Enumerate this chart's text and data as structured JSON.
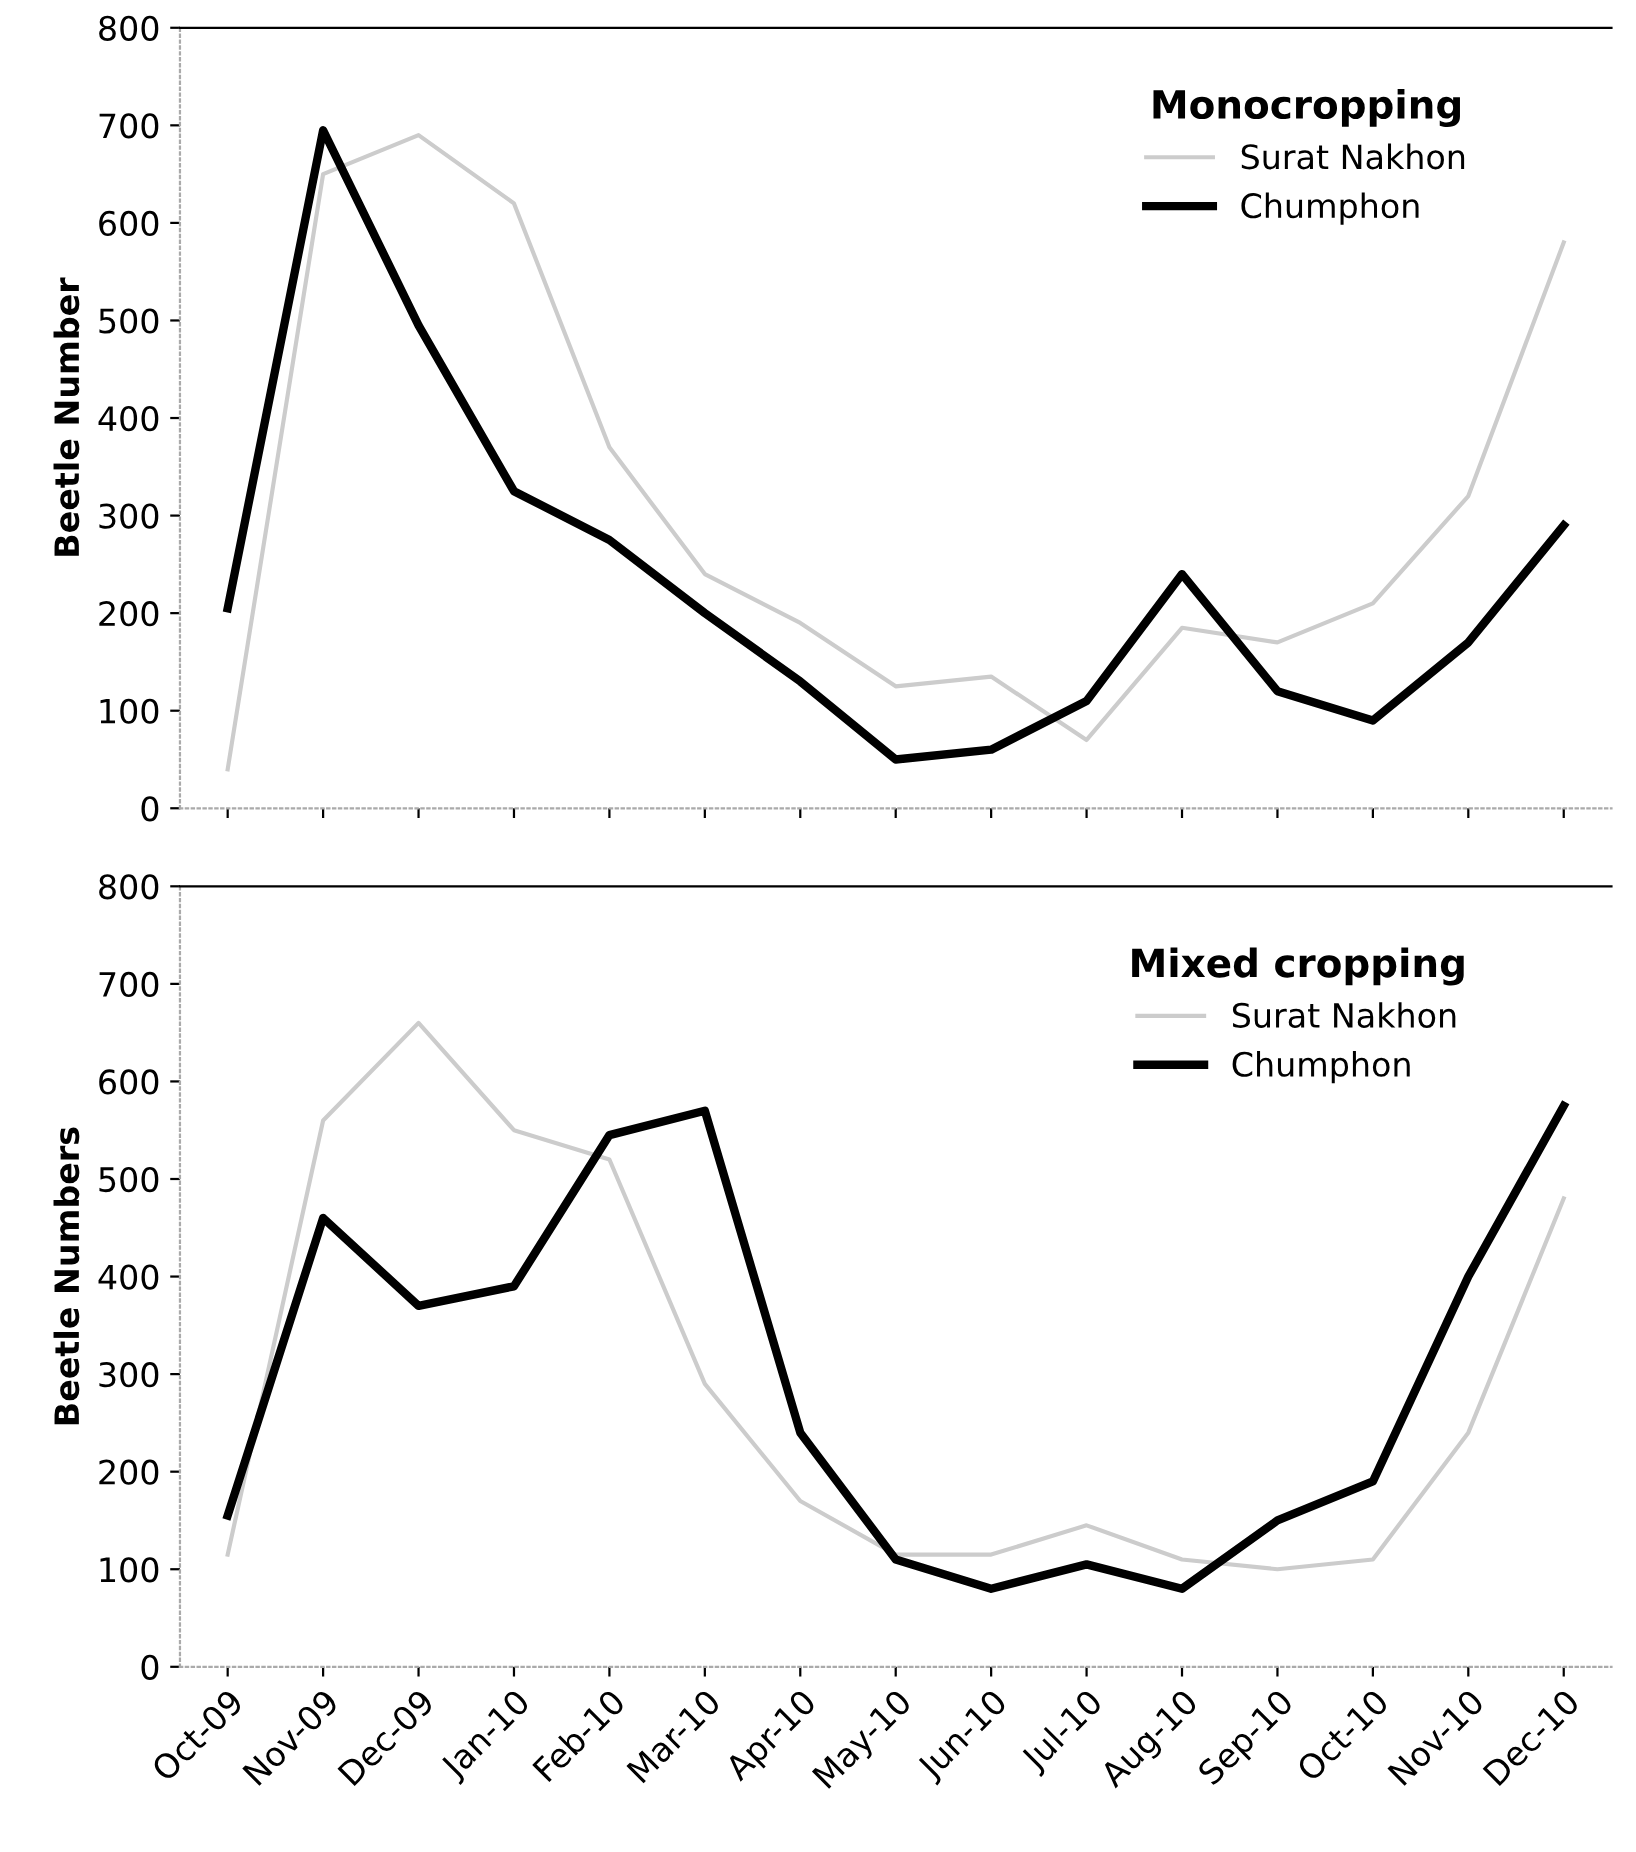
{
  "chart_data": [
    {
      "type": "line",
      "ylabel": "Beetle Number",
      "legend_title": "Monocropping",
      "legend": "top right",
      "tick_labels": "y",
      "categories": [
        null,
        null,
        null,
        null,
        null,
        null,
        null,
        null,
        null,
        null,
        null,
        null,
        null,
        null,
        null
      ],
      "ylim": [
        0,
        800
      ],
      "yticks": [
        0,
        100,
        200,
        300,
        400,
        500,
        600,
        700,
        800
      ],
      "series": [
        {
          "name": "Surat Nakhon",
          "color": "#cccccc",
          "values": [
            40,
            650,
            690,
            620,
            370,
            240,
            190,
            125,
            135,
            70,
            185,
            170,
            210,
            320,
            580
          ]
        },
        {
          "name": "Chumphon",
          "color": "#000000",
          "values": [
            205,
            695,
            495,
            325,
            275,
            200,
            130,
            50,
            60,
            110,
            240,
            120,
            90,
            170,
            290
          ]
        }
      ]
    },
    {
      "type": "line",
      "ylabel": "Beetle Numbers",
      "legend_title": "Mixed cropping",
      "legend": "top right",
      "categories": [
        "Oct-09",
        "Nov-09",
        "Dec-09",
        "Jan-10",
        "Feb-10",
        "Mar-10",
        "Apr-10",
        "May-10",
        "Jun-10",
        "Jul-10",
        "Aug-10",
        "Sep-10",
        "Oct-10",
        "Nov-10",
        "Dec-10"
      ],
      "ylim": [
        0,
        800
      ],
      "yticks": [
        0,
        100,
        200,
        300,
        400,
        500,
        600,
        700,
        800
      ],
      "series": [
        {
          "name": "Surat Nakhon",
          "color": "#cccccc",
          "values": [
            115,
            560,
            660,
            550,
            520,
            290,
            170,
            115,
            115,
            145,
            110,
            100,
            110,
            240,
            480
          ]
        },
        {
          "name": "Chumphon",
          "color": "#000000",
          "values": [
            155,
            460,
            370,
            390,
            545,
            570,
            240,
            110,
            80,
            105,
            80,
            150,
            190,
            400,
            575
          ]
        }
      ]
    }
  ]
}
